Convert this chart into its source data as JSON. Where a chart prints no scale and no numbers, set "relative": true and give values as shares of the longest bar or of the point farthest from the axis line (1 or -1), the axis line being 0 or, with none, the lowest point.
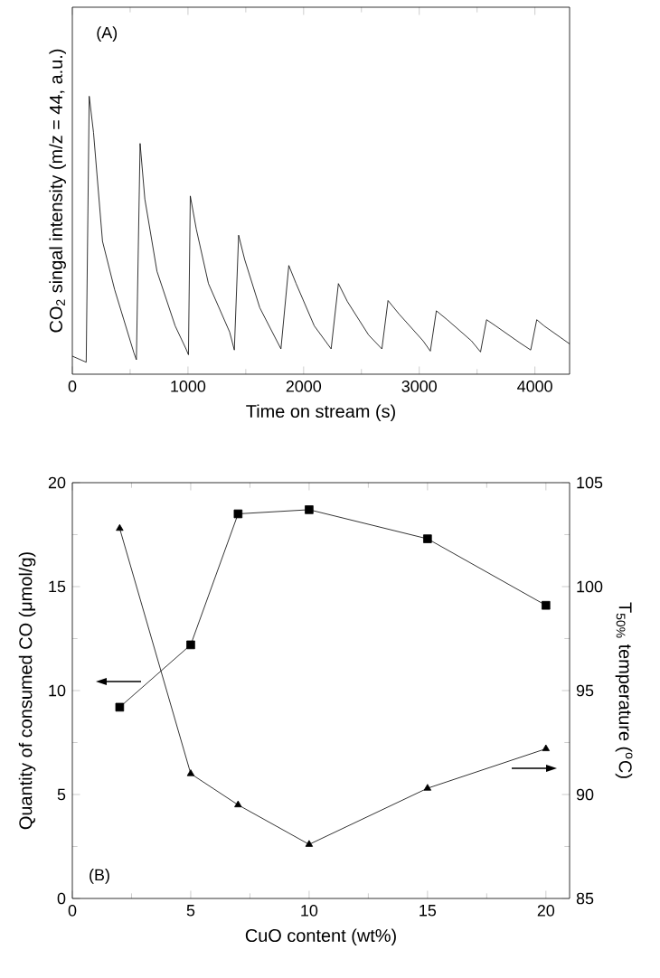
{
  "chart_data": [
    {
      "type": "line",
      "title": "(A)",
      "xlabel": "Time on stream (s)",
      "ylabel": "CO$_{2}$ singal intensity (m/z = 44, a.u.)",
      "relative": true,
      "xlim": [
        0,
        4300
      ],
      "xticks": [
        0,
        1000,
        2000,
        3000,
        4000
      ],
      "marker": "none",
      "color": "#000000",
      "x": [
        0,
        120,
        146,
        183,
        261,
        366,
        533,
        554,
        586,
        627,
        732,
        889,
        983,
        1004,
        1020,
        1072,
        1177,
        1360,
        1401,
        1438,
        1490,
        1621,
        1804,
        1872,
        1935,
        2092,
        2238,
        2301,
        2379,
        2562,
        2677,
        2730,
        2824,
        3033,
        3096,
        3148,
        3242,
        3451,
        3530,
        3582,
        3660,
        3869,
        3964,
        4016,
        4079,
        4300
      ],
      "values": [
        0.065,
        0.043,
        1.0,
        0.87,
        0.478,
        0.304,
        0.076,
        0.052,
        0.83,
        0.63,
        0.37,
        0.174,
        0.091,
        0.07,
        0.641,
        0.522,
        0.326,
        0.152,
        0.087,
        0.5,
        0.413,
        0.239,
        0.091,
        0.391,
        0.326,
        0.174,
        0.091,
        0.326,
        0.261,
        0.141,
        0.091,
        0.265,
        0.217,
        0.12,
        0.083,
        0.228,
        0.196,
        0.12,
        0.08,
        0.196,
        0.174,
        0.113,
        0.087,
        0.196,
        0.174,
        0.109
      ]
    },
    {
      "type": "line",
      "title": "(B)",
      "xlabel": "CuO content (wt%)",
      "ylabel": "Quantity of consumed CO (μmol/g)",
      "y2label": "T$_{50%}$ temperature ($^{o}$C)",
      "xlim": [
        0,
        21
      ],
      "xticks": [
        0,
        5,
        10,
        15,
        20
      ],
      "ylim": [
        0,
        20
      ],
      "yticks": [
        0,
        5,
        10,
        15,
        20
      ],
      "y2lim": [
        85,
        105
      ],
      "y2ticks": [
        85,
        90,
        95,
        100,
        105
      ],
      "x": [
        2,
        5,
        7,
        10,
        15,
        20
      ],
      "series": [
        {
          "color": "#000000",
          "marker": "square",
          "values": [
            9.2,
            12.2,
            18.5,
            18.7,
            17.3,
            14.1
          ]
        },
        {
          "color": "#000000",
          "marker": "triangle",
          "axis": "y2",
          "values": [
            102.8,
            91.0,
            89.5,
            87.6,
            90.3,
            92.2
          ]
        }
      ]
    }
  ]
}
